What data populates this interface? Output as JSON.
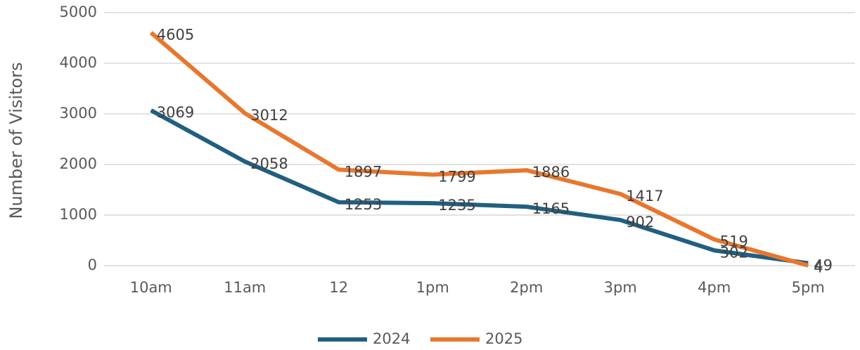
{
  "chart_data": {
    "type": "line",
    "y_label": "Number of Visitors",
    "categories": [
      "10am",
      "11am",
      "12",
      "1pm",
      "2pm",
      "3pm",
      "4pm",
      "5pm"
    ],
    "series": [
      {
        "name": "2024",
        "color": "#215f80",
        "values": [
          3069,
          2058,
          1253,
          1235,
          1165,
          902,
          302,
          49
        ]
      },
      {
        "name": "2025",
        "color": "#e8772e",
        "values": [
          4605,
          3012,
          1897,
          1799,
          1886,
          1417,
          519,
          4
        ]
      }
    ],
    "ylim": [
      0,
      5000
    ],
    "yticks": [
      0,
      1000,
      2000,
      3000,
      4000,
      5000
    ],
    "grid": true,
    "legend": "bottom"
  }
}
